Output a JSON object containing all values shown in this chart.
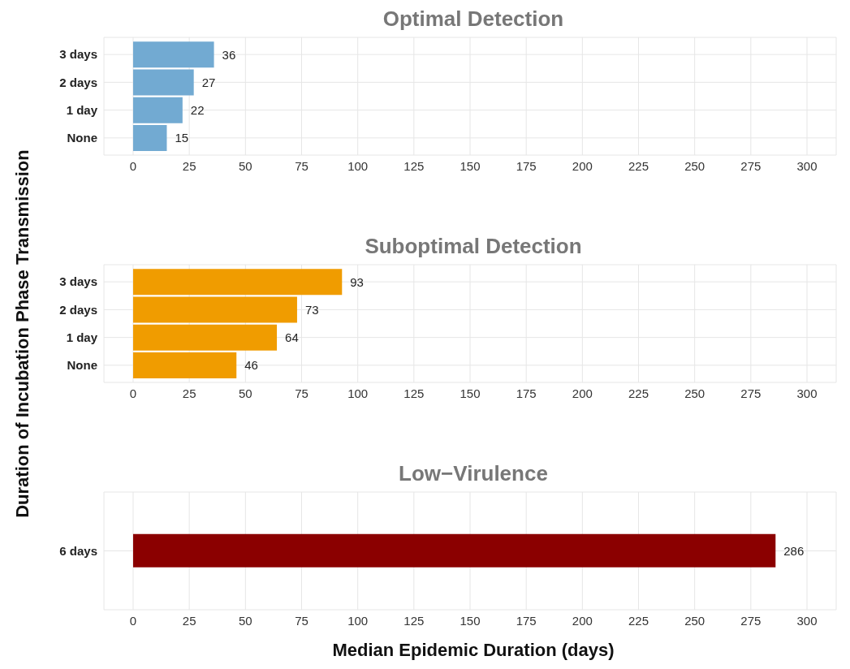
{
  "chart_data": [
    {
      "type": "bar",
      "orientation": "horizontal",
      "title": "Optimal Detection",
      "categories": [
        "3 days",
        "2 days",
        "1 day",
        "None"
      ],
      "values": [
        36,
        27,
        22,
        15
      ],
      "color": "#72aad2",
      "xlim": [
        -13,
        313
      ],
      "xticks": [
        0,
        25,
        50,
        75,
        100,
        125,
        150,
        175,
        200,
        225,
        250,
        275,
        300
      ],
      "grid": true,
      "data_labels": true
    },
    {
      "type": "bar",
      "orientation": "horizontal",
      "title": "Suboptimal Detection",
      "ylabel": "Duration of Incubation Phase Transmission",
      "categories": [
        "3 days",
        "2 days",
        "1 day",
        "None"
      ],
      "values": [
        93,
        73,
        64,
        46
      ],
      "color": "#f09c00",
      "xlim": [
        -13,
        313
      ],
      "xticks": [
        0,
        25,
        50,
        75,
        100,
        125,
        150,
        175,
        200,
        225,
        250,
        275,
        300
      ],
      "grid": true,
      "data_labels": true
    },
    {
      "type": "bar",
      "orientation": "horizontal",
      "title": "Low−Virulence",
      "xlabel": "Median Epidemic Duration (days)",
      "categories": [
        "6 days"
      ],
      "values": [
        286
      ],
      "color": "#8b0000",
      "xlim": [
        -13,
        313
      ],
      "xticks": [
        0,
        25,
        50,
        75,
        100,
        125,
        150,
        175,
        200,
        225,
        250,
        275,
        300
      ],
      "grid": true,
      "data_labels": true
    }
  ]
}
